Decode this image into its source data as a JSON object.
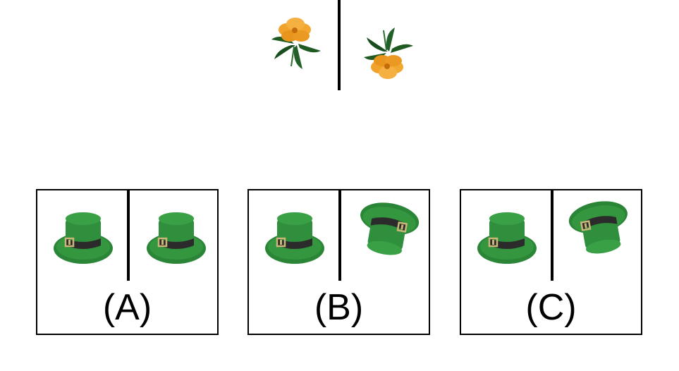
{
  "prompt": {
    "left_icon": "flower-upright-icon",
    "right_icon": "flower-rotated-icon"
  },
  "options": [
    {
      "label": "(A)",
      "left_icon": "green-top-hat-icon",
      "right_icon": "green-top-hat-icon"
    },
    {
      "label": "(B)",
      "left_icon": "green-top-hat-icon",
      "right_icon": "green-top-hat-rotated-icon"
    },
    {
      "label": "(C)",
      "left_icon": "green-top-hat-icon",
      "right_icon": "green-top-hat-rotated-icon"
    }
  ],
  "colors": {
    "flower_petal": "#f0a22a",
    "flower_center": "#c46b0b",
    "leaf": "#1f5a22",
    "hat_green": "#2f8f3c",
    "hat_band": "#2b2b2b",
    "buckle": "#c9b678",
    "line": "#000000"
  }
}
